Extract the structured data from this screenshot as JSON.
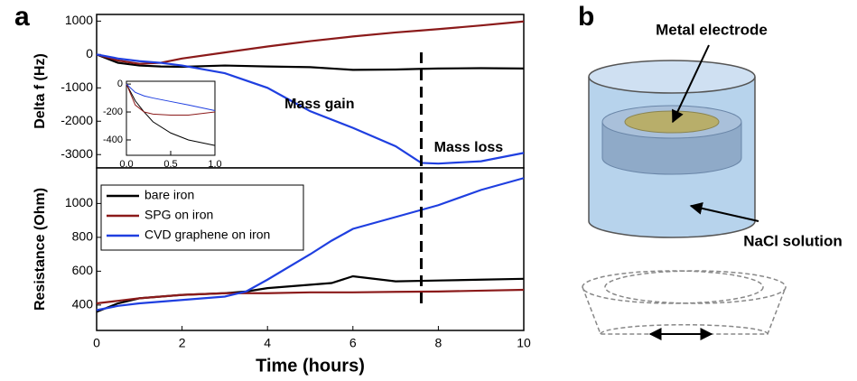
{
  "panel_labels": [
    "a",
    "b"
  ],
  "chart_data": [
    {
      "type": "line",
      "ylabel": "Delta f (Hz)",
      "x": [
        0,
        0.5,
        1,
        1.5,
        2,
        3,
        4,
        4.5,
        5,
        6,
        7,
        7.6,
        8,
        9,
        10
      ],
      "series": [
        {
          "color": "#000000",
          "values": [
            0,
            -250,
            -330,
            -360,
            -370,
            -330,
            -360,
            -370,
            -380,
            -460,
            -450,
            -430,
            -420,
            -410,
            -420
          ]
        },
        {
          "color": "#8b1a1a",
          "values": [
            0,
            -180,
            -280,
            -250,
            -120,
            60,
            240,
            320,
            400,
            540,
            660,
            720,
            760,
            870,
            990
          ]
        },
        {
          "color": "#1f3fe0",
          "values": [
            0,
            -120,
            -200,
            -250,
            -330,
            -560,
            -1000,
            -1350,
            -1700,
            -2200,
            -2750,
            -3250,
            -3270,
            -3200,
            -2950
          ]
        }
      ],
      "xlim": [
        0,
        10
      ],
      "ylim": [
        -3400,
        1200
      ],
      "yticks": [
        -3000,
        -2000,
        -1000,
        0,
        1000
      ],
      "vline": 7.6,
      "annotations": [
        {
          "text": "Mass gain",
          "x": 4.4,
          "y": -1500
        },
        {
          "text": "Mass loss",
          "x": 7.9,
          "y": -2800
        }
      ]
    },
    {
      "type": "line",
      "x": [
        0,
        0.1,
        0.2,
        0.3,
        0.5,
        0.7,
        1
      ],
      "series": [
        {
          "color": "#000000",
          "values": [
            0,
            -120,
            -200,
            -270,
            -350,
            -400,
            -440
          ]
        },
        {
          "color": "#8b1a1a",
          "values": [
            0,
            -150,
            -200,
            -215,
            -222,
            -222,
            -200
          ]
        },
        {
          "color": "#1f3fe0",
          "values": [
            0,
            -60,
            -85,
            -100,
            -125,
            -150,
            -190
          ]
        }
      ],
      "xlim": [
        0,
        1
      ],
      "ylim": [
        -510,
        20
      ],
      "yticks": [
        -400,
        -200,
        0
      ],
      "xticks": [
        {
          "value": 0,
          "label": "0.0"
        },
        {
          "value": 0.5,
          "label": "0.5"
        },
        {
          "value": 1,
          "label": "1.0"
        }
      ]
    },
    {
      "type": "line",
      "xlabel": "Time (hours)",
      "ylabel": "Resistance (Ohm)",
      "x": [
        0,
        0.5,
        1,
        2,
        3,
        3.5,
        4,
        5,
        5.5,
        6,
        7,
        8,
        9,
        10
      ],
      "series": [
        {
          "name": "bare iron",
          "color": "#000000",
          "values": [
            360,
            410,
            440,
            460,
            470,
            480,
            500,
            520,
            530,
            570,
            540,
            545,
            550,
            555
          ]
        },
        {
          "name": "SPG on iron",
          "color": "#8b1a1a",
          "values": [
            410,
            425,
            440,
            460,
            470,
            470,
            470,
            475,
            475,
            475,
            478,
            480,
            485,
            490
          ]
        },
        {
          "name": "CVD graphene on iron",
          "color": "#1f3fe0",
          "values": [
            370,
            395,
            410,
            430,
            450,
            480,
            550,
            700,
            780,
            850,
            920,
            990,
            1080,
            1150
          ]
        }
      ],
      "xlim": [
        0,
        10
      ],
      "ylim": [
        250,
        1210
      ],
      "xticks": [
        0,
        2,
        4,
        6,
        8,
        10
      ],
      "yticks": [
        400,
        600,
        800,
        1000
      ],
      "legend": "upper left"
    }
  ],
  "diagram": {
    "labels": [
      "Metal electrode",
      "NaCl solution"
    ]
  }
}
